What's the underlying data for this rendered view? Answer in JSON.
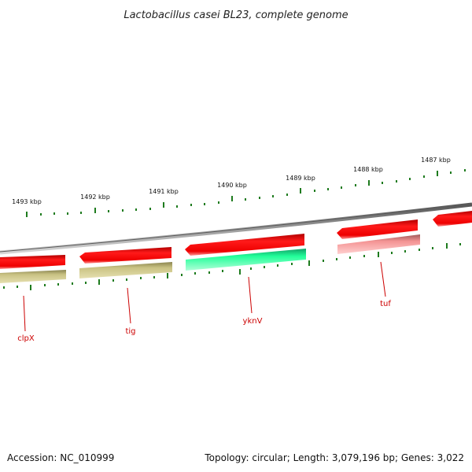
{
  "title": "Lactobacillus casei BL23, complete genome",
  "footer": {
    "accession": "Accession: NC_010999",
    "summary": "Topology: circular; Length: 3,079,196 bp; Genes: 3,022"
  },
  "scale_labels": [
    "1493 kbp",
    "1492 kbp",
    "1491 kbp",
    "1490 kbp",
    "1489 kbp",
    "1488 kbp",
    "1487 kbp"
  ],
  "genes": [
    {
      "name": "clpX"
    },
    {
      "name": "tig"
    },
    {
      "name": "yknV"
    },
    {
      "name": "tuf"
    }
  ],
  "colors": {
    "backbone": "#8a8a8a",
    "forward_gene": "#ee1111",
    "olive_gene": "#bdb77a",
    "green_gene": "#22ee99",
    "pink_gene": "#f08a8a",
    "tick": "#1e7b1e",
    "label": "#cc0000"
  }
}
